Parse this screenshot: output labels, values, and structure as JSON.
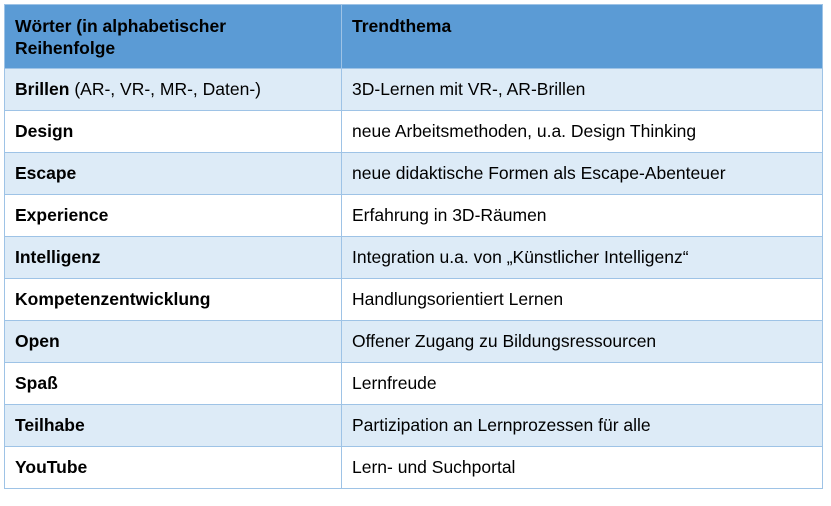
{
  "table": {
    "headers": [
      "Wörter (in alphabetischer Reihenfolge",
      "Trendthema"
    ],
    "rows": [
      {
        "word": "Brillen",
        "suffix": " (AR-, VR-, MR-, Daten-)",
        "topic": "3D-Lernen mit VR-, AR-Brillen"
      },
      {
        "word": "Design",
        "suffix": "",
        "topic": "neue Arbeitsmethoden, u.a. Design Thinking"
      },
      {
        "word": "Escape",
        "suffix": "",
        "topic": "neue didaktische Formen als Escape-Abenteuer"
      },
      {
        "word": "Experience",
        "suffix": "",
        "topic": "Erfahrung in 3D-Räumen"
      },
      {
        "word": "Intelligenz",
        "suffix": "",
        "topic": "Integration u.a. von „Künstlicher Intelligenz“"
      },
      {
        "word": "Kompetenzentwicklung",
        "suffix": "",
        "topic": "Handlungsorientiert Lernen"
      },
      {
        "word": "Open",
        "suffix": "",
        "topic": "Offener Zugang zu Bildungsressourcen"
      },
      {
        "word": "Spaß",
        "suffix": "",
        "topic": "Lernfreude"
      },
      {
        "word": "Teilhabe",
        "suffix": "",
        "topic": "Partizipation an Lernprozessen für alle"
      },
      {
        "word": "YouTube",
        "suffix": "",
        "topic": "Lern- und Suchportal"
      }
    ]
  },
  "colors": {
    "header_bg": "#5b9bd5",
    "band_bg": "#ddebf7",
    "border": "#9ec3e6"
  }
}
